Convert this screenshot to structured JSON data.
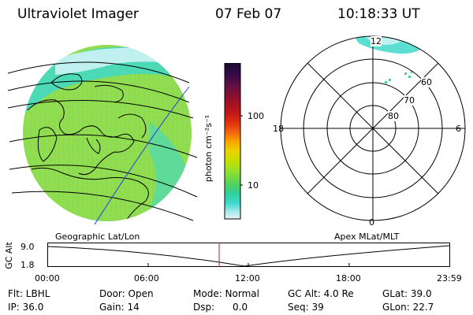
{
  "header": {
    "instrument": "Ultraviolet Imager",
    "date": "07 Feb 07",
    "time": "10:18:33 UT"
  },
  "colorbar": {
    "unit_label": "photon cm⁻²s⁻¹",
    "ticks": [
      "100",
      "10"
    ],
    "colors": [
      "#1a0a33",
      "#3a0a4a",
      "#6a1040",
      "#9a1028",
      "#c01818",
      "#e03010",
      "#f06010",
      "#f8a000",
      "#f0d000",
      "#c8e000",
      "#90e030",
      "#50d060",
      "#30d0a0",
      "#40d8d0",
      "#a0e8e8",
      "#e8f4f4"
    ]
  },
  "earth_map": {
    "projection_label": "Geographic Lat/Lon",
    "base_color": "#90dc50",
    "dayglow_color": "#40d8c8",
    "colors": [
      "#90dc50",
      "#40d8c8",
      "#c0f0f0",
      "#a8e040"
    ]
  },
  "polar_plot": {
    "coord_label": "Apex MLat/MLT",
    "mlt_labels": {
      "top": "12",
      "left": "18",
      "right": "6",
      "bottom": "0"
    },
    "lat_labels": [
      "60",
      "70",
      "80"
    ],
    "aurora_color": "#40d8c8"
  },
  "altitude_strip": {
    "axis_label": "GC Alt",
    "y_labels": [
      "9.0",
      "1.8"
    ],
    "time_ticks": [
      "00:00",
      "06:00",
      "12:00",
      "18:00",
      "23:59"
    ],
    "current_time_color": "#d01818"
  },
  "info": {
    "flt": "Flt: LBHL",
    "door": "Door: Open",
    "mode": "Mode: Normal",
    "gc_alt": "GC Alt: 4.0 Re",
    "glat": "GLat:  39.0",
    "ip": "IP: 36.0",
    "gain": "Gain: 14",
    "dsp": "Dsp:      0.0",
    "seq": "Seq: 39",
    "glon": "GLon:  22.7"
  }
}
